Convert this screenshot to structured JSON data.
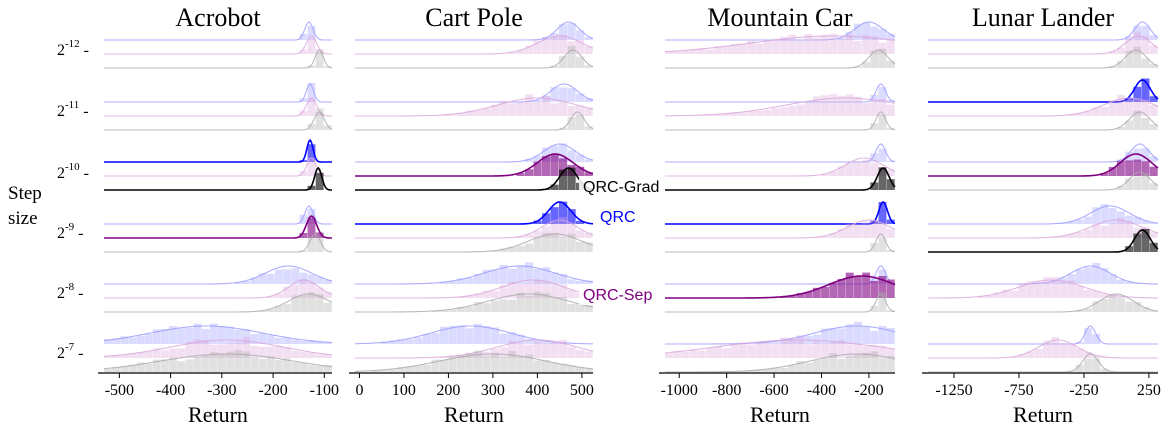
{
  "chart_data": {
    "type": "area",
    "ylabel": "Step size",
    "xlabel": "Return",
    "step_sizes": [
      "-12",
      "-11",
      "-10",
      "-9",
      "-8",
      "-7"
    ],
    "step_base": "2",
    "legend": [
      {
        "name": "QRC-Grad",
        "color": "#000000"
      },
      {
        "name": "QRC",
        "color": "#0000ff"
      },
      {
        "name": "QRC-Sep",
        "color": "#800080"
      }
    ],
    "series_colors": {
      "QRC": "#9999ff",
      "QRC-Sep": "#d9a6d9",
      "QRC-Grad": "#aaaaaa"
    },
    "panels": [
      {
        "title": "Acrobot",
        "xlim": [
          -530,
          -85
        ],
        "xticks": [
          -500,
          -400,
          -300,
          -200,
          -100
        ],
        "xtick_labels": [
          "-500",
          "-400",
          "-300",
          "-200",
          "-100"
        ],
        "rows": [
          {
            "QRC": [
              [
                -130,
                8
              ]
            ],
            "QRC-Sep": [
              [
                -125,
                10
              ]
            ],
            "QRC-Grad": [
              [
                -110,
                8
              ]
            ]
          },
          {
            "QRC": [
              [
                -128,
                7
              ]
            ],
            "QRC-Sep": [
              [
                -125,
                10
              ]
            ],
            "QRC-Grad": [
              [
                -110,
                10
              ]
            ]
          },
          {
            "QRC": [
              [
                -128,
                6
              ]
            ],
            "QRC-Sep": [
              [
                -125,
                9
              ]
            ],
            "QRC-Grad": [
              [
                -112,
                7
              ]
            ]
          },
          {
            "QRC": [
              [
                -130,
                8
              ]
            ],
            "QRC-Sep": [
              [
                -125,
                10
              ]
            ],
            "QRC-Grad": [
              [
                -118,
                10
              ]
            ]
          },
          {
            "QRC": [
              [
                -170,
                45
              ]
            ],
            "QRC-Sep": [
              [
                -140,
                30
              ]
            ],
            "QRC-Grad": [
              [
                -130,
                40
              ]
            ]
          },
          {
            "QRC": [
              [
                -330,
                110
              ]
            ],
            "QRC-Sep": [
              [
                -290,
                110
              ]
            ],
            "QRC-Grad": [
              [
                -290,
                130
              ]
            ]
          }
        ],
        "highlight": {
          "2": [
            "QRC",
            "QRC-Grad"
          ],
          "3": [
            "QRC-Sep"
          ]
        }
      },
      {
        "title": "Cart Pole",
        "xlim": [
          -10,
          525
        ],
        "xticks": [
          0,
          100,
          200,
          300,
          400,
          500
        ],
        "xtick_labels": [
          "0",
          "100",
          "200",
          "300",
          "400",
          "500"
        ],
        "rows": [
          {
            "QRC": [
              [
                470,
                25
              ]
            ],
            "QRC-Sep": [
              [
                450,
                50
              ]
            ],
            "QRC-Grad": [
              [
                480,
                20
              ]
            ]
          },
          {
            "QRC": [
              [
                460,
                30
              ]
            ],
            "QRC-Sep": [
              [
                400,
                90
              ]
            ],
            "QRC-Grad": [
              [
                490,
                15
              ]
            ]
          },
          {
            "QRC": [
              [
                450,
                35
              ]
            ],
            "QRC-Sep": [
              [
                440,
                40
              ]
            ],
            "QRC-Grad": [
              [
                470,
                20
              ]
            ]
          },
          {
            "QRC": [
              [
                450,
                25
              ]
            ],
            "QRC-Sep": [
              [
                450,
                40
              ]
            ],
            "QRC-Grad": [
              [
                440,
                60
              ]
            ]
          },
          {
            "QRC": [
              [
                360,
                80
              ]
            ],
            "QRC-Sep": [
              [
                390,
                70
              ]
            ],
            "QRC-Grad": [
              [
                380,
                90
              ]
            ]
          },
          {
            "QRC": [
              [
                250,
                90
              ]
            ],
            "QRC-Sep": [
              [
                400,
                90
              ]
            ],
            "QRC-Grad": [
              [
                300,
                120
              ]
            ]
          }
        ],
        "highlight": {
          "2": [
            "QRC-Sep",
            "QRC-Grad"
          ],
          "3": [
            "QRC"
          ]
        }
      },
      {
        "title": "Mountain Car",
        "xlim": [
          -1060,
          -90
        ],
        "xticks": [
          -1000,
          -800,
          -600,
          -400,
          -200
        ],
        "xtick_labels": [
          "-1000",
          "-800",
          "-600",
          "-400",
          "-200"
        ],
        "rows": [
          {
            "QRC": [
              [
                -200,
                60
              ]
            ],
            "QRC-Sep": [
              [
                -350,
                350
              ]
            ],
            "QRC-Grad": [
              [
                -160,
                40
              ]
            ]
          },
          {
            "QRC": [
              [
                -150,
                20
              ]
            ],
            "QRC-Sep": [
              [
                -300,
                250
              ]
            ],
            "QRC-Grad": [
              [
                -150,
                20
              ]
            ]
          },
          {
            "QRC": [
              [
                -150,
                20
              ]
            ],
            "QRC-Sep": [
              [
                -220,
                80
              ]
            ],
            "QRC-Grad": [
              [
                -140,
                25
              ]
            ]
          },
          {
            "QRC": [
              [
                -140,
                18
              ]
            ],
            "QRC-Sep": [
              [
                -200,
                90
              ]
            ],
            "QRC-Grad": [
              [
                -150,
                20
              ]
            ]
          },
          {
            "QRC": [
              [
                -150,
                20
              ]
            ],
            "QRC-Sep": [
              [
                -230,
                140
              ]
            ],
            "QRC-Grad": [
              [
                -150,
                20
              ]
            ]
          },
          {
            "QRC": [
              [
                -250,
                180
              ]
            ],
            "QRC-Sep": [
              [
                -500,
                350
              ]
            ],
            "QRC-Grad": [
              [
                -250,
                200
              ]
            ]
          }
        ],
        "highlight": {
          "2": [
            "QRC-Grad"
          ],
          "3": [
            "QRC"
          ],
          "4": [
            "QRC-Sep"
          ]
        }
      },
      {
        "title": "Lunar Lander",
        "xlim": [
          -1450,
          320
        ],
        "xticks": [
          -1250,
          -750,
          -250,
          250
        ],
        "xtick_labels": [
          "-1250",
          "-750",
          "-250",
          "250"
        ],
        "rows": [
          {
            "QRC": [
              [
                200,
                60
              ]
            ],
            "QRC-Sep": [
              [
                170,
                100
              ]
            ],
            "QRC-Grad": [
              [
                150,
                80
              ]
            ]
          },
          {
            "QRC": [
              [
                200,
                60
              ]
            ],
            "QRC-Sep": [
              [
                100,
                200
              ]
            ],
            "QRC-Grad": [
              [
                180,
                80
              ]
            ]
          },
          {
            "QRC": [
              [
                180,
                70
              ]
            ],
            "QRC-Sep": [
              [
                150,
                120
              ]
            ],
            "QRC-Grad": [
              [
                180,
                80
              ]
            ]
          },
          {
            "QRC": [
              [
                -50,
                150
              ]
            ],
            "QRC-Sep": [
              [
                0,
                200
              ]
            ],
            "QRC-Grad": [
              [
                200,
                60
              ]
            ]
          },
          {
            "QRC": [
              [
                -200,
                150
              ]
            ],
            "QRC-Sep": [
              [
                -500,
                250
              ]
            ],
            "QRC-Grad": [
              [
                0,
                130
              ]
            ]
          },
          {
            "QRC": [
              [
                -200,
                40
              ]
            ],
            "QRC-Sep": [
              [
                -450,
                150
              ]
            ],
            "QRC-Grad": [
              [
                -200,
                60
              ]
            ]
          }
        ],
        "highlight": {
          "1": [
            "QRC"
          ],
          "2": [
            "QRC-Sep"
          ],
          "3": [
            "QRC-Grad"
          ]
        }
      }
    ]
  }
}
